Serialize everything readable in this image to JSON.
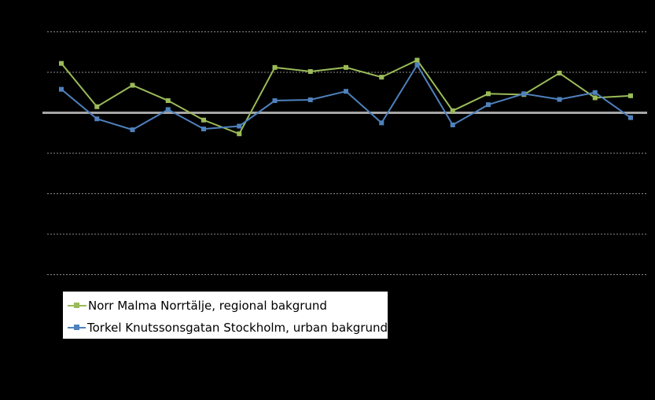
{
  "chart_data": {
    "type": "line",
    "title": "",
    "xlabel": "",
    "ylabel": "",
    "ylim": [
      -4.2,
      2.0
    ],
    "y_gridlines": [
      2,
      1,
      0,
      -1,
      -2,
      -3,
      -4
    ],
    "zero_line": 0,
    "grid": true,
    "legend_position": "bottom-left",
    "x": [
      1,
      2,
      3,
      4,
      5,
      6,
      7,
      8,
      9,
      10,
      11,
      12,
      13,
      14,
      15,
      16,
      17
    ],
    "series": [
      {
        "name": "Norr Malma Norrtälje, regional bakgrund",
        "color": "#9bbb59",
        "values": [
          1.22,
          0.15,
          0.68,
          0.3,
          -0.18,
          -0.52,
          1.12,
          1.02,
          1.12,
          0.88,
          1.3,
          0.05,
          0.47,
          0.45,
          0.98,
          0.37,
          0.42
        ]
      },
      {
        "name": "Torkel Knutssonsgatan Stockholm, urban bakgrund",
        "color": "#4f81bd",
        "values": [
          0.58,
          -0.15,
          -0.42,
          0.08,
          -0.4,
          -0.33,
          0.3,
          0.32,
          0.53,
          -0.25,
          1.18,
          -0.3,
          0.2,
          0.47,
          0.33,
          0.5,
          -0.12
        ]
      }
    ]
  }
}
